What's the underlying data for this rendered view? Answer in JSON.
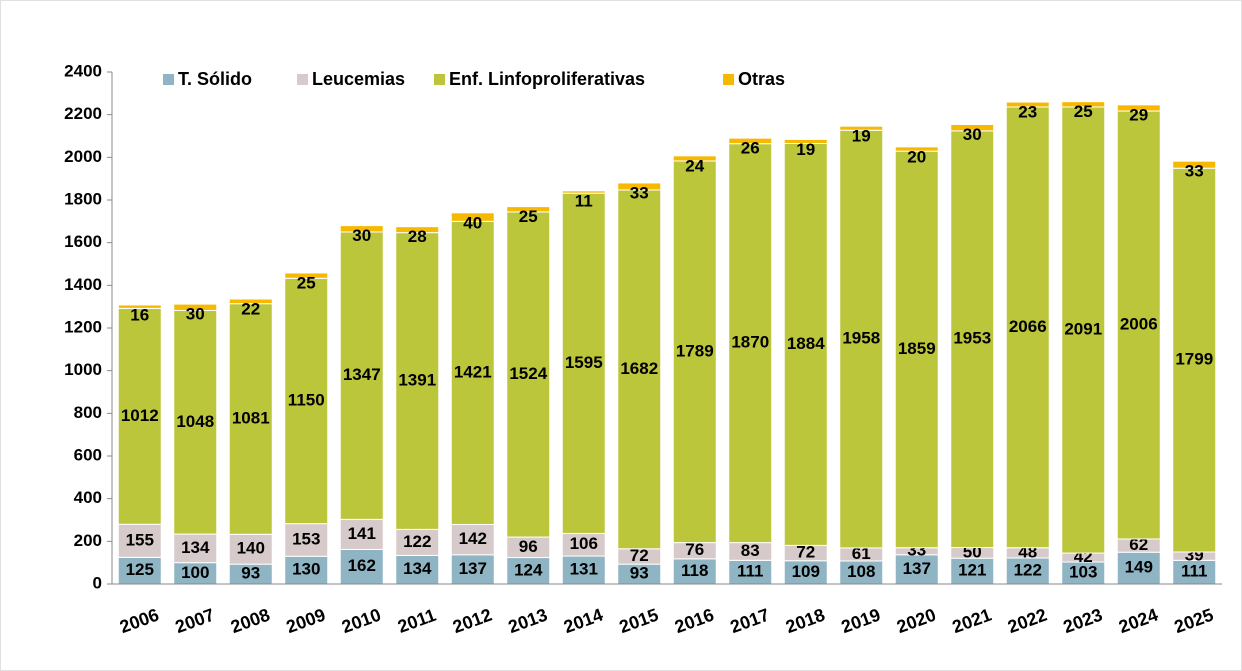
{
  "chart_data": {
    "type": "bar",
    "stacked": true,
    "categories": [
      "2006",
      "2007",
      "2008",
      "2009",
      "2010",
      "2011",
      "2012",
      "2013",
      "2014",
      "2015",
      "2016",
      "2017",
      "2018",
      "2019",
      "2020",
      "2021",
      "2022",
      "2023",
      "2024",
      "2025"
    ],
    "series": [
      {
        "name": "T. Sólido",
        "color": "#8fb4c3",
        "values": [
          125,
          100,
          93,
          130,
          162,
          134,
          137,
          124,
          131,
          93,
          118,
          111,
          109,
          108,
          137,
          121,
          122,
          103,
          149,
          111
        ]
      },
      {
        "name": "Leucemias",
        "color": "#d7caca",
        "values": [
          155,
          134,
          140,
          153,
          141,
          122,
          142,
          96,
          106,
          72,
          76,
          83,
          72,
          61,
          33,
          50,
          48,
          42,
          62,
          39
        ]
      },
      {
        "name": "Enf. Linfoproliferativas",
        "color": "#bcc63b",
        "values": [
          1012,
          1048,
          1081,
          1150,
          1347,
          1391,
          1421,
          1524,
          1595,
          1682,
          1789,
          1870,
          1884,
          1958,
          1859,
          1953,
          2066,
          2091,
          2006,
          1799
        ]
      },
      {
        "name": "Otras",
        "color": "#f6b900",
        "values": [
          16,
          30,
          22,
          25,
          30,
          28,
          40,
          25,
          11,
          33,
          24,
          26,
          19,
          19,
          20,
          30,
          23,
          25,
          29,
          33
        ]
      }
    ],
    "ylim": [
      0,
      2400
    ],
    "yticks": [
      0,
      200,
      400,
      600,
      800,
      1000,
      1200,
      1400,
      1600,
      1800,
      2000,
      2200,
      2400
    ],
    "legend": "top-left"
  }
}
